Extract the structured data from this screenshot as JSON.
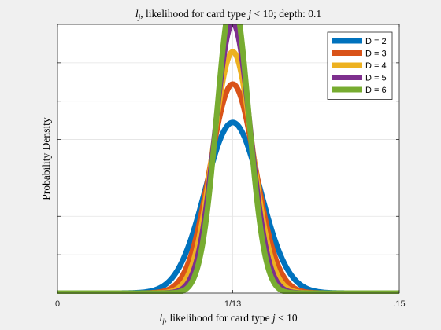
{
  "chart_data": {
    "type": "line",
    "title": "l_j, likelihood for card type j < 10; depth: 0.1",
    "title_parts": {
      "var": "l",
      "sub": "j",
      "mid": ", likelihood for card type ",
      "jvar": "j",
      "rest": " < 10; depth: 0.1"
    },
    "xlabel": "l_j, likelihood for card type j < 10",
    "xlabel_parts": {
      "var": "l",
      "sub": "j",
      "mid": ", likelihood for card type ",
      "jvar": "j",
      "rest": " < 10"
    },
    "ylabel": "Probability Density",
    "xlim": [
      0,
      0.15
    ],
    "x_ticks": [
      {
        "value": 0,
        "label": "0"
      },
      {
        "value": 0.0769231,
        "label": "1/13"
      },
      {
        "value": 0.15,
        "label": ".15"
      }
    ],
    "y_ticks_count": 7,
    "grid": true,
    "legend_position": "top-right",
    "mean": 0.0769231,
    "series": [
      {
        "name": "D = 2",
        "color": "#0072BD",
        "sd": 0.0121,
        "peak": 0.635
      },
      {
        "name": "D = 3",
        "color": "#D95319",
        "sd": 0.0099,
        "peak": 0.778
      },
      {
        "name": "D = 4",
        "color": "#EDB120",
        "sd": 0.0086,
        "peak": 0.898
      },
      {
        "name": "D = 5",
        "color": "#7E2F8E",
        "sd": 0.0077,
        "peak": 1.004
      },
      {
        "name": "D = 6",
        "color": "#77AC30",
        "sd": 0.007,
        "peak": 1.1
      }
    ],
    "ylim": [
      0,
      1.0
    ]
  }
}
